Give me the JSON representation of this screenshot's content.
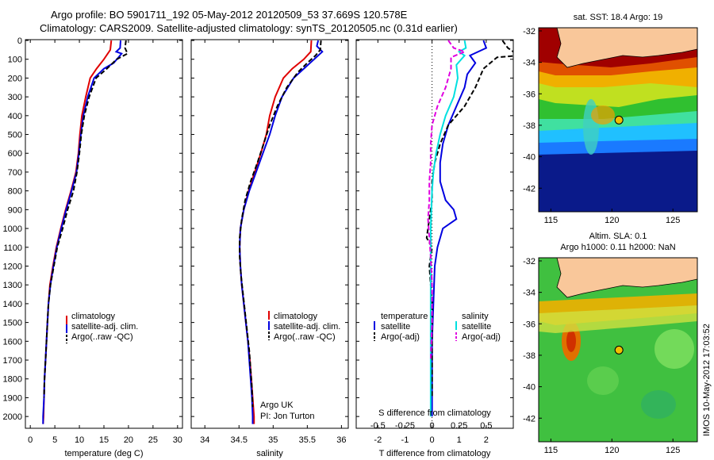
{
  "title_line1": "Argo profile: BO 5901711_192 05-May-2012 20120509_53 37.669S 120.578E",
  "title_line2": "Climatology: CARS2009. Satellite-adjusted climatology: synTS_20120505.nc (0.31d earlier)",
  "colors": {
    "climatology": "#e00000",
    "satellite": "#0000e0",
    "argo": "#000000",
    "cyan": "#00e0e0",
    "magenta": "#e000e0"
  },
  "chart_data": [
    {
      "type": "line",
      "panel": "temperature",
      "xlabel": "temperature (deg C)",
      "ylabel": "",
      "xlim": [
        -1,
        31
      ],
      "ylim": [
        2050,
        0
      ],
      "xticks": [
        0,
        5,
        10,
        15,
        20,
        25,
        30
      ],
      "yticks": [
        0,
        100,
        200,
        300,
        400,
        500,
        600,
        700,
        800,
        900,
        1000,
        1100,
        1200,
        1300,
        1400,
        1500,
        1600,
        1700,
        1800,
        1900,
        2000
      ],
      "legend": [
        "climatology",
        "satellite-adj. clim.",
        "Argo(..raw -QC)"
      ],
      "series": [
        {
          "name": "climatology",
          "color": "#e00000",
          "dash": false,
          "points": [
            [
              16.5,
              0
            ],
            [
              16.3,
              50
            ],
            [
              15.0,
              100
            ],
            [
              13.5,
              150
            ],
            [
              12.2,
              200
            ],
            [
              11.3,
              300
            ],
            [
              10.5,
              400
            ],
            [
              10.1,
              500
            ],
            [
              9.8,
              600
            ],
            [
              9.3,
              700
            ],
            [
              8.3,
              800
            ],
            [
              7.2,
              900
            ],
            [
              6.2,
              1000
            ],
            [
              5.3,
              1100
            ],
            [
              4.6,
              1200
            ],
            [
              4.0,
              1300
            ],
            [
              3.7,
              1400
            ],
            [
              3.5,
              1500
            ],
            [
              3.3,
              1600
            ],
            [
              3.1,
              1700
            ],
            [
              2.9,
              1800
            ],
            [
              2.8,
              1900
            ],
            [
              2.7,
              2000
            ],
            [
              2.6,
              2040
            ]
          ]
        },
        {
          "name": "satellite-adj. clim.",
          "color": "#0000e0",
          "dash": false,
          "points": [
            [
              18.4,
              0
            ],
            [
              18.3,
              40
            ],
            [
              17.5,
              60
            ],
            [
              18.6,
              70
            ],
            [
              17.0,
              120
            ],
            [
              15.0,
              150
            ],
            [
              13.0,
              200
            ],
            [
              11.7,
              300
            ],
            [
              10.8,
              400
            ],
            [
              10.3,
              500
            ],
            [
              9.9,
              600
            ],
            [
              9.4,
              700
            ],
            [
              8.4,
              800
            ],
            [
              7.3,
              900
            ],
            [
              6.3,
              1000
            ],
            [
              5.4,
              1100
            ],
            [
              4.7,
              1200
            ],
            [
              4.1,
              1300
            ],
            [
              3.7,
              1400
            ],
            [
              3.5,
              1500
            ],
            [
              3.3,
              1600
            ],
            [
              3.1,
              1700
            ],
            [
              2.9,
              1800
            ],
            [
              2.8,
              1900
            ],
            [
              2.6,
              2000
            ],
            [
              2.6,
              2040
            ]
          ]
        },
        {
          "name": "Argo(..raw -QC)",
          "color": "#000000",
          "dash": true,
          "points": [
            [
              19.5,
              0
            ],
            [
              19.3,
              40
            ],
            [
              19.8,
              70
            ],
            [
              17.6,
              100
            ],
            [
              15.6,
              150
            ],
            [
              13.4,
              200
            ],
            [
              12.0,
              300
            ],
            [
              11.0,
              400
            ],
            [
              10.4,
              500
            ],
            [
              10.0,
              600
            ],
            [
              9.5,
              700
            ],
            [
              8.8,
              800
            ],
            [
              7.6,
              900
            ],
            [
              6.6,
              1000
            ],
            [
              5.5,
              1100
            ],
            [
              4.8,
              1200
            ],
            [
              4.1,
              1300
            ],
            [
              3.7,
              1400
            ],
            [
              3.5,
              1500
            ],
            [
              3.3,
              1600
            ],
            [
              3.1,
              1700
            ],
            [
              2.9,
              1800
            ],
            [
              2.8,
              1900
            ]
          ]
        }
      ]
    },
    {
      "type": "line",
      "panel": "salinity",
      "xlabel": "salinity",
      "ylabel": "",
      "xlim": [
        33.8,
        36.1
      ],
      "ylim": [
        2050,
        0
      ],
      "xticks": [
        34,
        34.5,
        35,
        35.5,
        36
      ],
      "legend": [
        "climatology",
        "satellite-adj. clim.",
        "Argo(..raw -QC)"
      ],
      "annotations": [
        "Argo UK",
        "PI: Jon Turton"
      ],
      "series": [
        {
          "name": "climatology",
          "color": "#e00000",
          "dash": false,
          "points": [
            [
              35.56,
              0
            ],
            [
              35.55,
              60
            ],
            [
              35.45,
              100
            ],
            [
              35.28,
              150
            ],
            [
              35.15,
              200
            ],
            [
              35.03,
              300
            ],
            [
              34.95,
              400
            ],
            [
              34.9,
              500
            ],
            [
              34.82,
              600
            ],
            [
              34.73,
              700
            ],
            [
              34.64,
              800
            ],
            [
              34.57,
              900
            ],
            [
              34.52,
              1000
            ],
            [
              34.51,
              1100
            ],
            [
              34.52,
              1200
            ],
            [
              34.54,
              1300
            ],
            [
              34.57,
              1400
            ],
            [
              34.6,
              1500
            ],
            [
              34.63,
              1600
            ],
            [
              34.66,
              1700
            ],
            [
              34.68,
              1800
            ],
            [
              34.7,
              1900
            ],
            [
              34.72,
              2000
            ],
            [
              34.72,
              2040
            ]
          ]
        },
        {
          "name": "satellite-adj. clim.",
          "color": "#0000e0",
          "dash": false,
          "points": [
            [
              35.66,
              0
            ],
            [
              35.64,
              30
            ],
            [
              35.72,
              60
            ],
            [
              35.6,
              100
            ],
            [
              35.45,
              150
            ],
            [
              35.3,
              200
            ],
            [
              35.13,
              300
            ],
            [
              35.03,
              400
            ],
            [
              34.95,
              500
            ],
            [
              34.85,
              600
            ],
            [
              34.75,
              700
            ],
            [
              34.65,
              800
            ],
            [
              34.57,
              900
            ],
            [
              34.52,
              1000
            ],
            [
              34.51,
              1100
            ],
            [
              34.52,
              1200
            ],
            [
              34.54,
              1300
            ],
            [
              34.57,
              1400
            ],
            [
              34.6,
              1500
            ],
            [
              34.63,
              1600
            ],
            [
              34.65,
              1700
            ],
            [
              34.67,
              1800
            ],
            [
              34.69,
              1900
            ],
            [
              34.7,
              2000
            ],
            [
              34.7,
              2040
            ]
          ]
        },
        {
          "name": "Argo(..raw -QC)",
          "color": "#000000",
          "dash": true,
          "points": [
            [
              35.7,
              0
            ],
            [
              35.69,
              50
            ],
            [
              35.62,
              80
            ],
            [
              35.5,
              120
            ],
            [
              35.36,
              170
            ],
            [
              35.2,
              250
            ],
            [
              35.06,
              350
            ],
            [
              34.95,
              450
            ],
            [
              34.86,
              550
            ],
            [
              34.77,
              650
            ],
            [
              34.67,
              750
            ],
            [
              34.59,
              850
            ],
            [
              34.54,
              950
            ],
            [
              34.51,
              1050
            ],
            [
              34.51,
              1150
            ],
            [
              34.53,
              1250
            ],
            [
              34.56,
              1350
            ],
            [
              34.59,
              1450
            ],
            [
              34.62,
              1550
            ],
            [
              34.65,
              1650
            ],
            [
              34.67,
              1750
            ],
            [
              34.69,
              1850
            ],
            [
              34.7,
              1950
            ]
          ]
        }
      ]
    },
    {
      "type": "line",
      "panel": "difference",
      "xlabel": "T difference from climatology",
      "xlabel_top": "S difference from climatology",
      "xlim": [
        -2.8,
        3
      ],
      "ylim": [
        2050,
        0
      ],
      "xticks": [
        -2,
        -1,
        0,
        1,
        2
      ],
      "xtick_labels_S": [
        "-0.5",
        "-0.25",
        "0",
        "0.25",
        "0.5"
      ],
      "legend_left_title": "temperature",
      "legend_right_title": "salinity",
      "legend_left": [
        "satellite",
        "Argo(-adj)"
      ],
      "legend_right": [
        "satellite",
        "Argo(-adj)"
      ],
      "series": [
        {
          "name": "satellite",
          "group": "temperature",
          "color": "#0000e0",
          "dash": false,
          "points": [
            [
              1.9,
              0
            ],
            [
              2.0,
              40
            ],
            [
              1.4,
              80
            ],
            [
              1.6,
              120
            ],
            [
              1.3,
              180
            ],
            [
              1.2,
              250
            ],
            [
              0.9,
              350
            ],
            [
              0.6,
              450
            ],
            [
              0.4,
              550
            ],
            [
              0.3,
              650
            ],
            [
              0.3,
              750
            ],
            [
              0.5,
              850
            ],
            [
              0.8,
              900
            ],
            [
              0.9,
              950
            ],
            [
              0.4,
              1000
            ],
            [
              0.2,
              1100
            ],
            [
              0.1,
              1200
            ],
            [
              0.05,
              1400
            ],
            [
              0,
              1600
            ],
            [
              0,
              2000
            ]
          ]
        },
        {
          "name": "Argo(-adj)",
          "group": "temperature",
          "color": "#000000",
          "dash": true,
          "points": [
            [
              2.6,
              0
            ],
            [
              2.8,
              40
            ],
            [
              3.2,
              80
            ],
            [
              2.4,
              90
            ],
            [
              1.9,
              150
            ],
            [
              1.6,
              250
            ],
            [
              1.2,
              350
            ],
            [
              0.6,
              450
            ],
            [
              0.3,
              550
            ],
            [
              0.1,
              650
            ],
            [
              0,
              750
            ],
            [
              0,
              850
            ],
            [
              -0.1,
              950
            ],
            [
              -0.2,
              1050
            ],
            [
              0,
              1100
            ],
            [
              -0.1,
              1200
            ],
            [
              0,
              1400
            ],
            [
              0,
              1900
            ]
          ]
        },
        {
          "name": "satellite",
          "group": "salinity",
          "color": "#00e0e0",
          "dash": false,
          "points": [
            [
              1.2,
              0
            ],
            [
              1.25,
              40
            ],
            [
              1.0,
              60
            ],
            [
              1.2,
              80
            ],
            [
              0.9,
              130
            ],
            [
              0.95,
              200
            ],
            [
              0.8,
              300
            ],
            [
              0.5,
              400
            ],
            [
              0.3,
              500
            ],
            [
              0.15,
              600
            ],
            [
              0.05,
              700
            ],
            [
              0,
              800
            ],
            [
              -0.05,
              1000
            ],
            [
              -0.05,
              1200
            ],
            [
              -0.05,
              1400
            ],
            [
              -0.05,
              1600
            ],
            [
              -0.05,
              1800
            ],
            [
              -0.05,
              2000
            ]
          ]
        },
        {
          "name": "Argo(-adj)",
          "group": "salinity",
          "color": "#e000e0",
          "dash": true,
          "points": [
            [
              0.6,
              0
            ],
            [
              0.8,
              40
            ],
            [
              1.2,
              60
            ],
            [
              0.7,
              90
            ],
            [
              0.7,
              150
            ],
            [
              0.5,
              250
            ],
            [
              0.2,
              350
            ],
            [
              0,
              450
            ],
            [
              -0.05,
              550
            ],
            [
              -0.05,
              650
            ],
            [
              -0.1,
              750
            ],
            [
              -0.1,
              850
            ],
            [
              -0.15,
              950
            ],
            [
              -0.1,
              1050
            ],
            [
              -0.05,
              1150
            ],
            [
              0,
              1300
            ],
            [
              0,
              1500
            ],
            [
              -0.05,
              1700
            ]
          ]
        }
      ]
    },
    {
      "type": "heatmap",
      "panel": "sst_map",
      "title": "sat. SST: 18.4 Argo: 19",
      "xlim": [
        114,
        127
      ],
      "ylim": [
        -43.5,
        -31.8
      ],
      "xticks": [
        115,
        120,
        125
      ],
      "yticks": [
        -32,
        -34,
        -36,
        -38,
        -40,
        -42
      ],
      "marker": {
        "lon": 120.578,
        "lat": -37.669
      }
    },
    {
      "type": "heatmap",
      "panel": "sla_map",
      "title_line1": "Altim. SLA: 0.1",
      "title_line2": "Argo h1000: 0.11 h2000: NaN",
      "xlim": [
        114,
        127
      ],
      "ylim": [
        -43.5,
        -31.8
      ],
      "xticks": [
        115,
        120,
        125
      ],
      "yticks": [
        -32,
        -34,
        -36,
        -38,
        -40,
        -42
      ],
      "marker": {
        "lon": 120.578,
        "lat": -37.669
      }
    }
  ],
  "side_stamp": "IMOS 10-May-2012 17:03:52"
}
